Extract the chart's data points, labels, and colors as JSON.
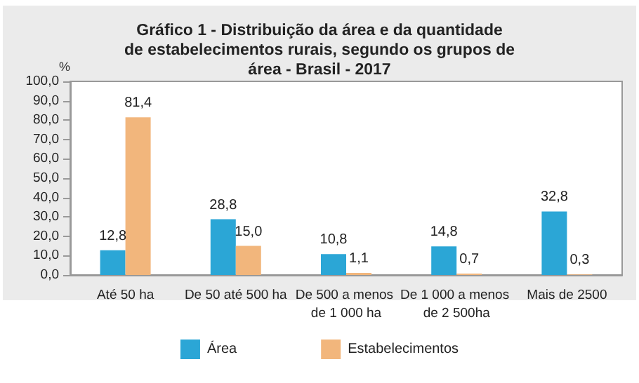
{
  "chart_data": {
    "type": "bar",
    "title": "Gráfico 1 - Distribuição da área e da quantidade de estabelecimentos rurais, segundo os grupos de área - Brasil - 2017",
    "ylabel": "%",
    "categories": [
      "Até 50 ha",
      "De 50 até 500 ha",
      "De 500 a menos de 1 000 ha",
      "De 1 000 a menos de 2 500ha",
      "Mais de 2500"
    ],
    "series": [
      {
        "name": "Área",
        "color": "#2ba6d6",
        "values": [
          12.8,
          28.8,
          10.8,
          14.8,
          32.8
        ],
        "value_labels": [
          "12,8",
          "28,8",
          "10,8",
          "14,8",
          "32,8"
        ]
      },
      {
        "name": "Estabelecimentos",
        "color": "#f2b67c",
        "values": [
          81.4,
          15.0,
          1.1,
          0.7,
          0.3
        ],
        "value_labels": [
          "81,4",
          "15,0",
          "1,1",
          "0,7",
          "0,3"
        ]
      }
    ],
    "ylim": [
      0,
      100
    ],
    "yticks": [
      {
        "value": 0,
        "label": "0,0"
      },
      {
        "value": 10,
        "label": "10,0"
      },
      {
        "value": 20,
        "label": "20,0"
      },
      {
        "value": 30,
        "label": "30,0"
      },
      {
        "value": 40,
        "label": "40,0"
      },
      {
        "value": 50,
        "label": "50,0"
      },
      {
        "value": 60,
        "label": "60,0"
      },
      {
        "value": 70,
        "label": "70,0"
      },
      {
        "value": 80,
        "label": "80,0"
      },
      {
        "value": 90,
        "label": "90,0"
      },
      {
        "value": 100,
        "label": "100,0"
      }
    ],
    "grid": false,
    "legend": "bottom"
  }
}
